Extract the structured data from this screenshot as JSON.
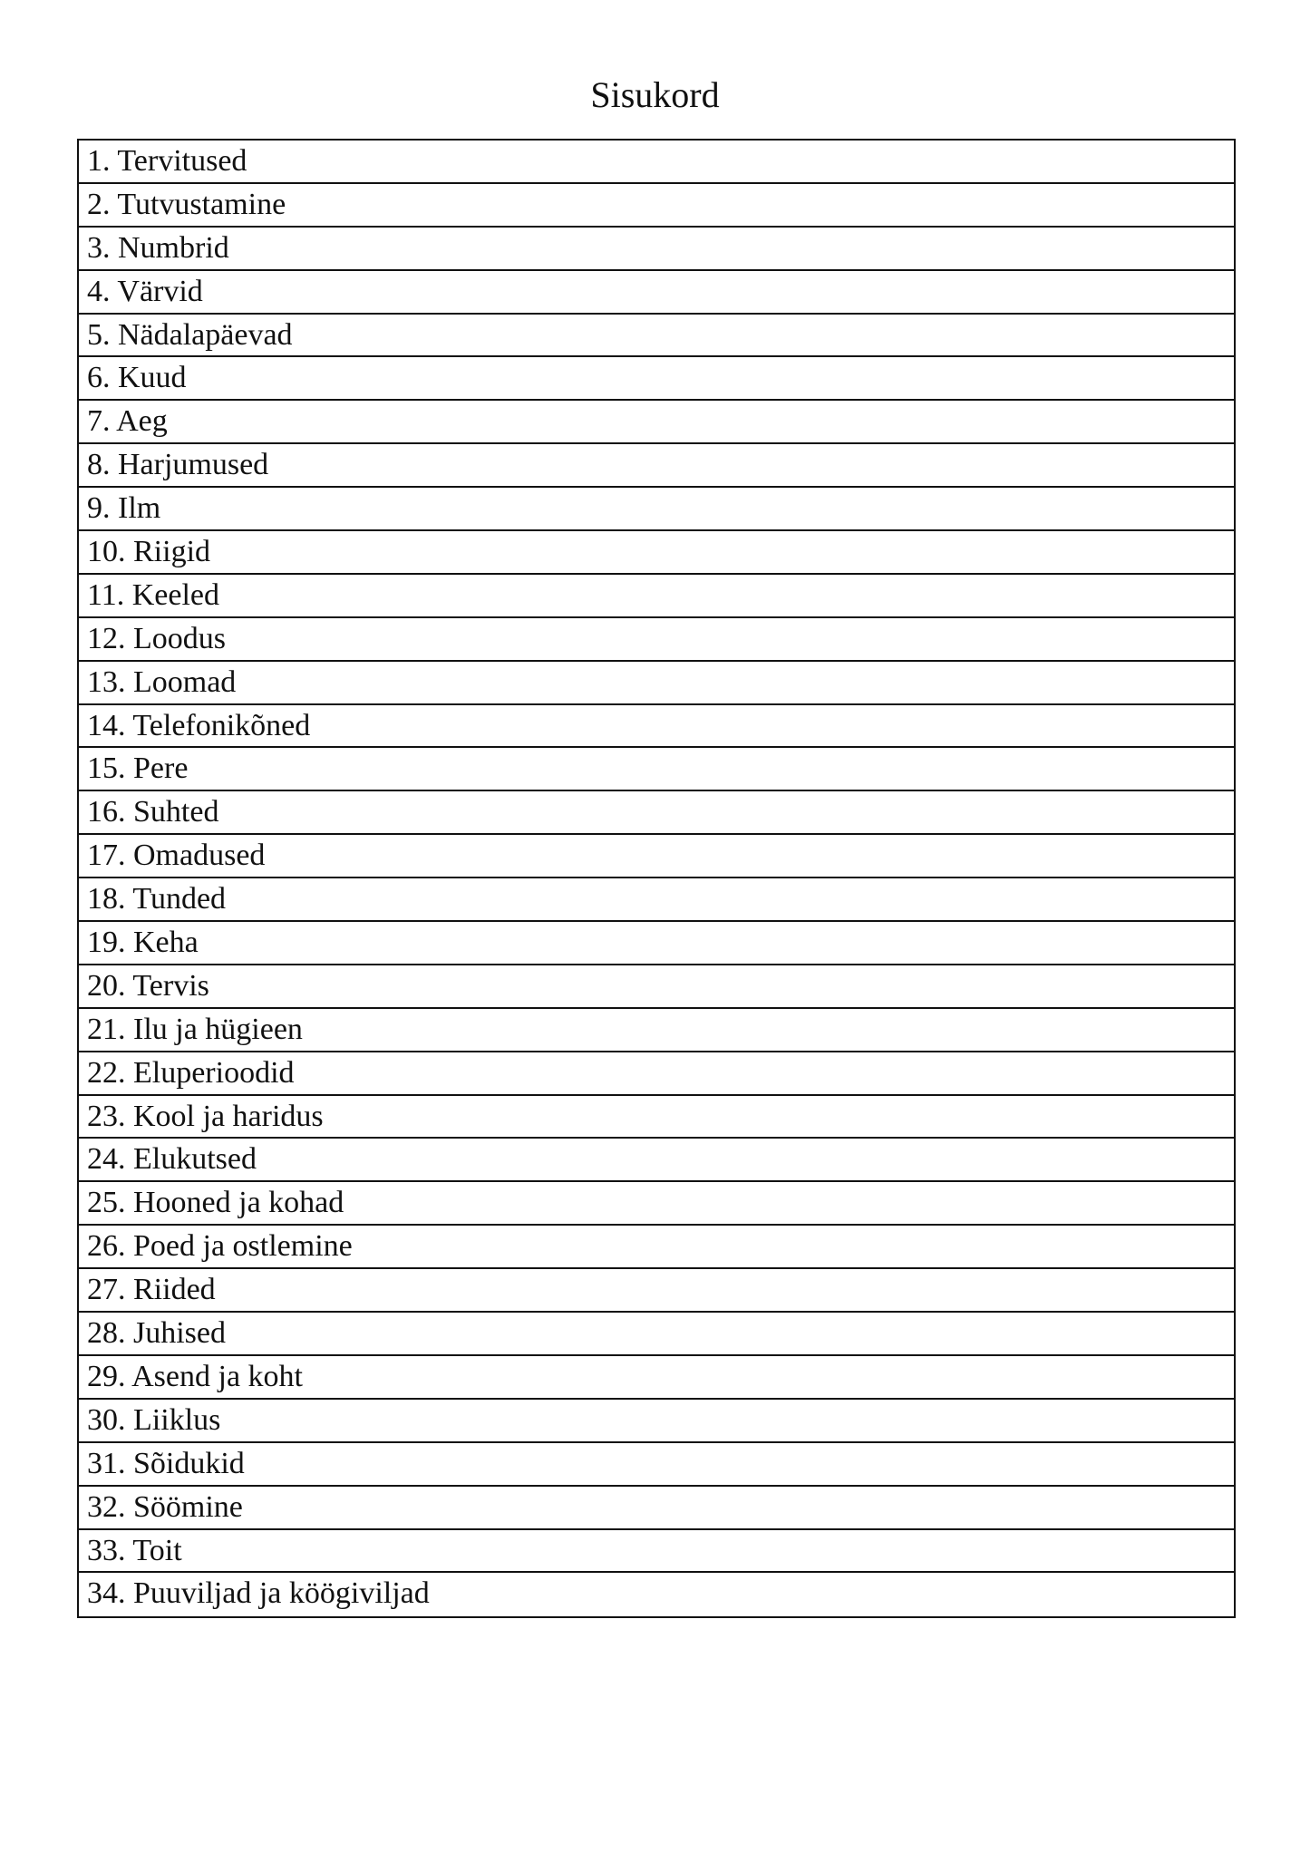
{
  "title": "Sisukord",
  "items": [
    "1. Tervitused",
    "2. Tutvustamine",
    "3. Numbrid",
    "4. Värvid",
    "5. Nädalapäevad",
    "6. Kuud",
    "7. Aeg",
    "8. Harjumused",
    "9. Ilm",
    "10. Riigid",
    "11. Keeled",
    "12. Loodus",
    "13. Loomad",
    "14. Telefonikõned",
    "15. Pere",
    "16. Suhted",
    "17. Omadused",
    "18. Tunded",
    "19. Keha",
    "20. Tervis",
    "21. Ilu ja hügieen",
    "22. Eluperioodid",
    "23. Kool ja haridus",
    "24. Elukutsed",
    "25. Hooned ja kohad",
    "26. Poed ja ostlemine",
    "27. Riided",
    "28. Juhised",
    "29. Asend ja koht",
    "30. Liiklus",
    "31. Sõidukid",
    "32. Söömine",
    "33. Toit",
    "34. Puuviljad ja köögiviljad"
  ]
}
